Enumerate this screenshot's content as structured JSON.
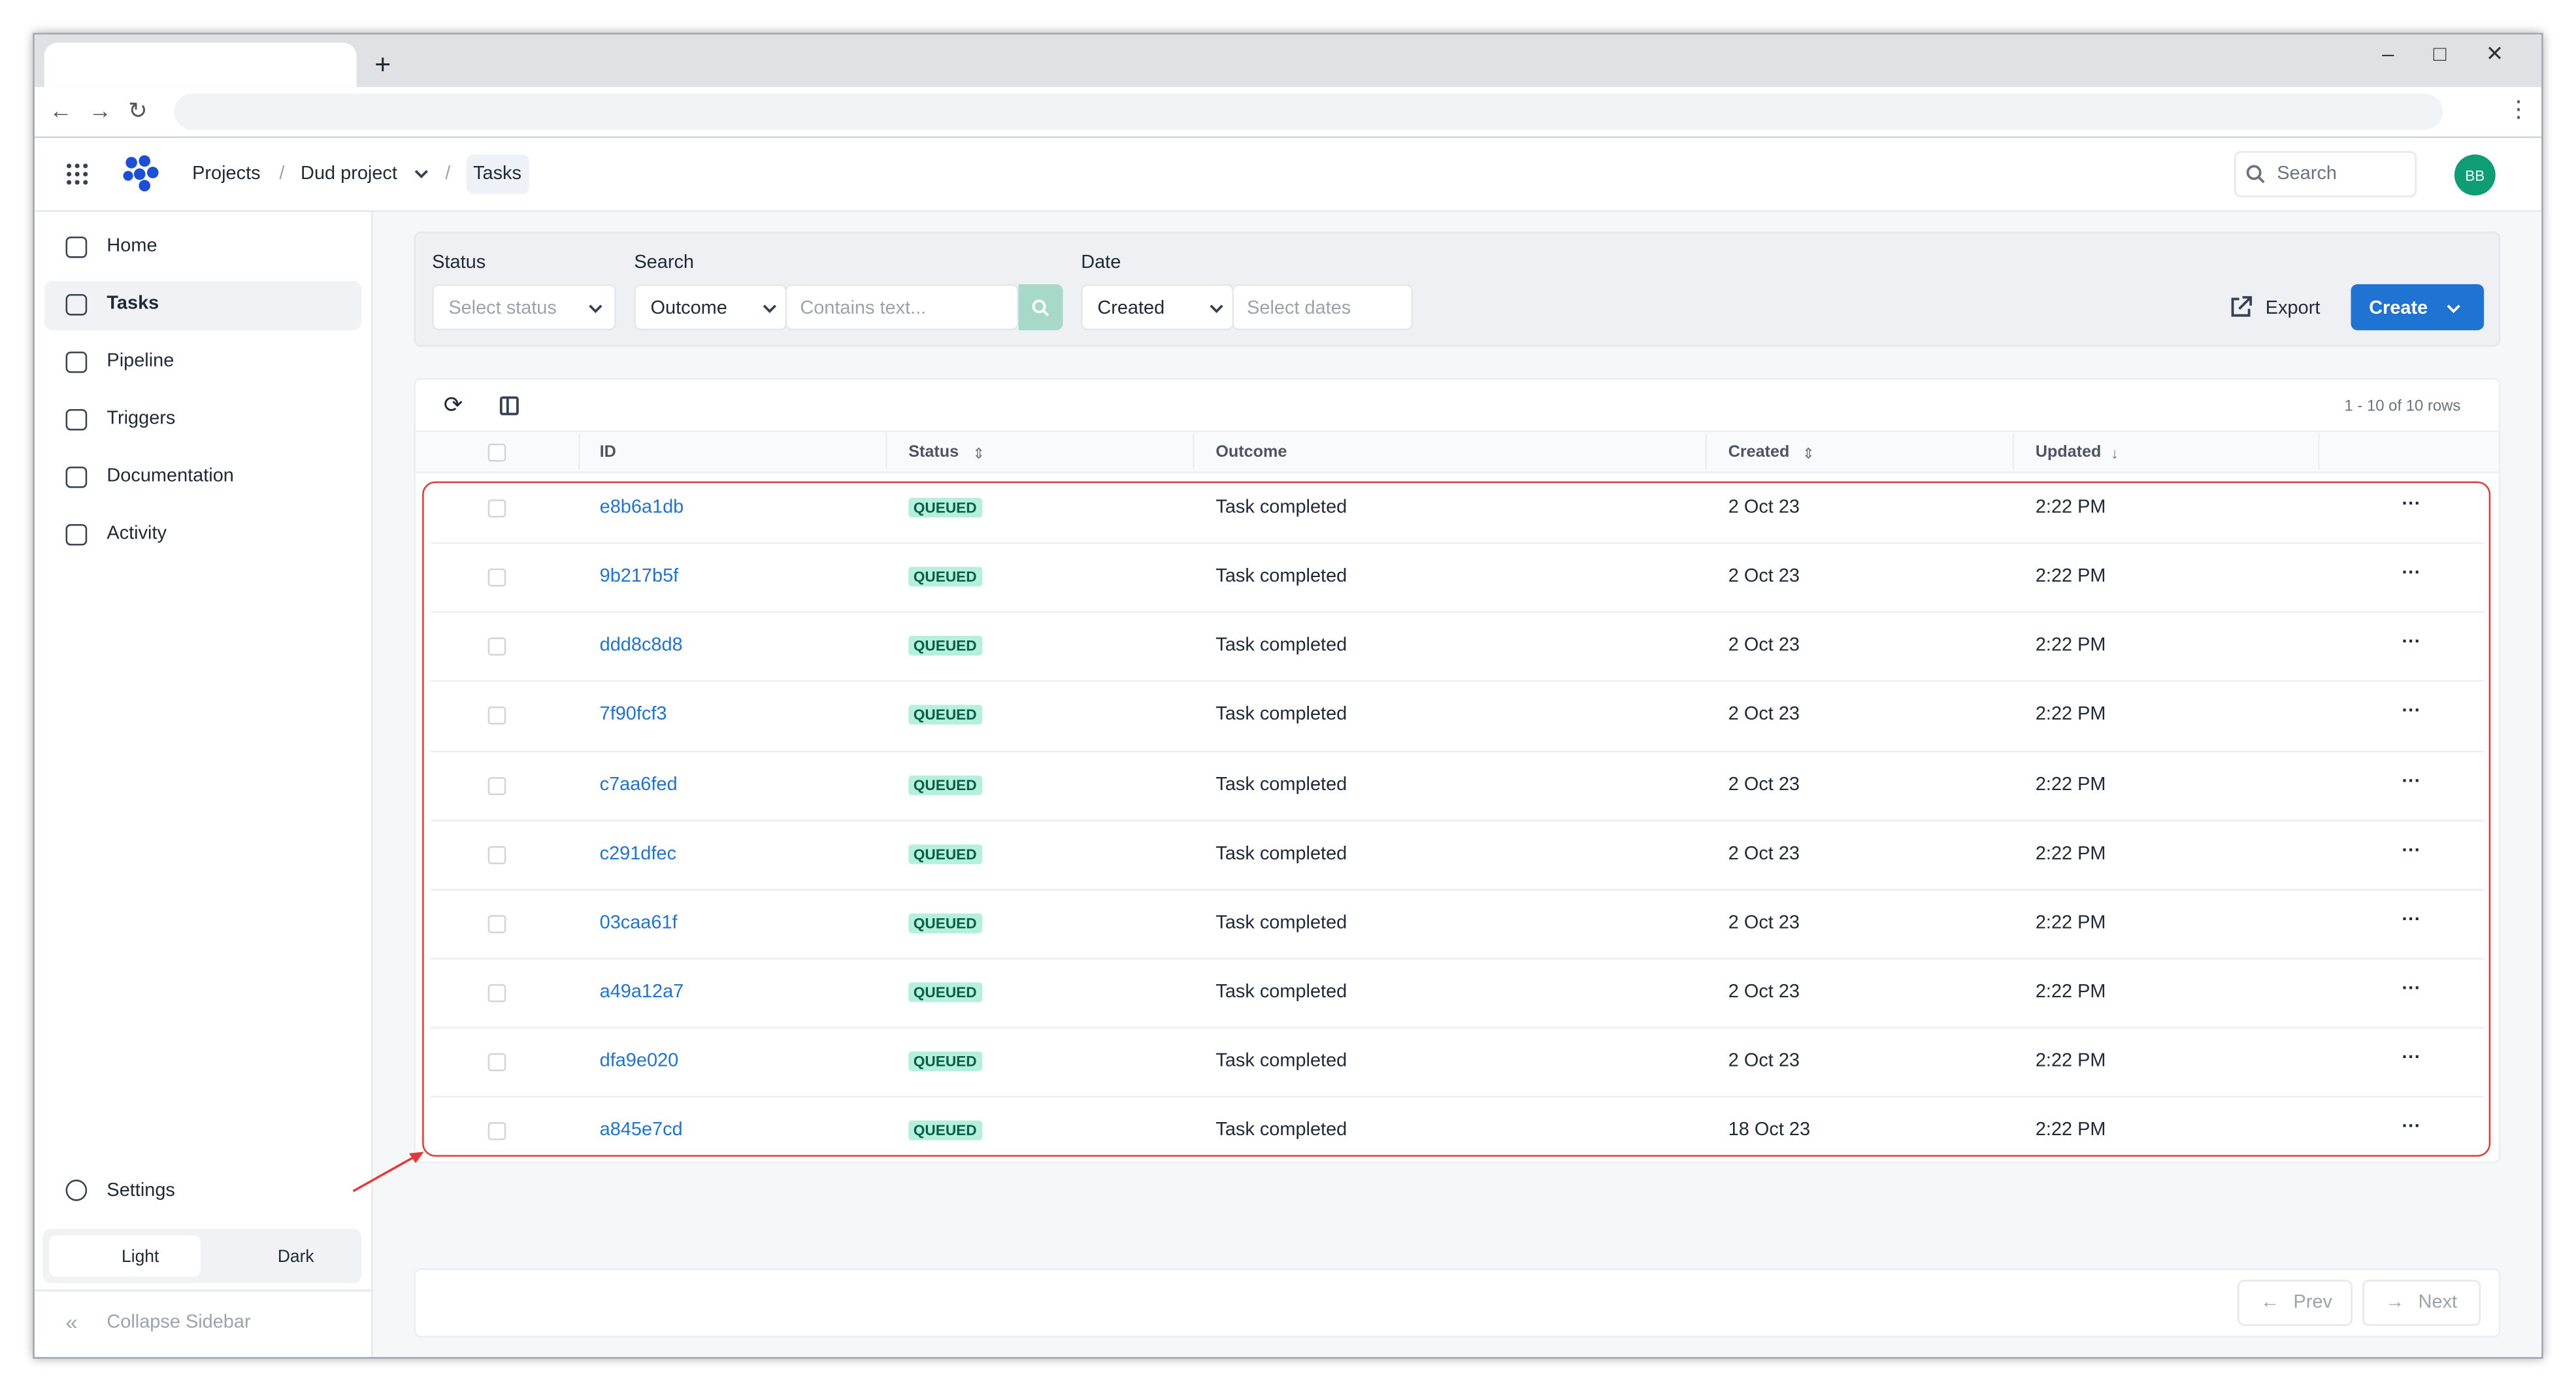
{
  "browser": {
    "new_tab": "+"
  },
  "header": {
    "breadcrumbs": [
      "Projects",
      "Dud project",
      "Tasks"
    ],
    "search": "Search",
    "avatar": "BB"
  },
  "sidebar": {
    "nav": [
      "Home",
      "Tasks",
      "Pipeline",
      "Triggers",
      "Documentation",
      "Activity"
    ],
    "settings": "Settings",
    "theme": [
      "Light",
      "Dark"
    ],
    "collapse": "Collapse Sidebar"
  },
  "filters": {
    "status_label": "Status",
    "status_placeholder": "Select status",
    "search_label": "Search",
    "search_field": "Outcome",
    "search_placeholder": "Contains text...",
    "date_label": "Date",
    "date_field": "Created",
    "date_placeholder": "Select dates",
    "export": "Export",
    "create": "Create"
  },
  "table": {
    "row_count": "1 - 10 of 10 rows",
    "columns": [
      "ID",
      "Status",
      "Outcome",
      "Created",
      "Updated"
    ],
    "rows": [
      [
        "e8b6a1db",
        "QUEUED",
        "Task completed",
        "2 Oct 23",
        "2:22 PM"
      ],
      [
        "9b217b5f",
        "QUEUED",
        "Task completed",
        "2 Oct 23",
        "2:22 PM"
      ],
      [
        "ddd8c8d8",
        "QUEUED",
        "Task completed",
        "2 Oct 23",
        "2:22 PM"
      ],
      [
        "7f90fcf3",
        "QUEUED",
        "Task completed",
        "2 Oct 23",
        "2:22 PM"
      ],
      [
        "c7aa6fed",
        "QUEUED",
        "Task completed",
        "2 Oct 23",
        "2:22 PM"
      ],
      [
        "c291dfec",
        "QUEUED",
        "Task completed",
        "2 Oct 23",
        "2:22 PM"
      ],
      [
        "03caa61f",
        "QUEUED",
        "Task completed",
        "2 Oct 23",
        "2:22 PM"
      ],
      [
        "a49a12a7",
        "QUEUED",
        "Task completed",
        "2 Oct 23",
        "2:22 PM"
      ],
      [
        "dfa9e020",
        "QUEUED",
        "Task completed",
        "2 Oct 23",
        "2:22 PM"
      ],
      [
        "a845e7cd",
        "QUEUED",
        "Task completed",
        "18 Oct 23",
        "2:22 PM"
      ]
    ]
  },
  "pagination": {
    "prev": "Prev",
    "next": "Next"
  }
}
